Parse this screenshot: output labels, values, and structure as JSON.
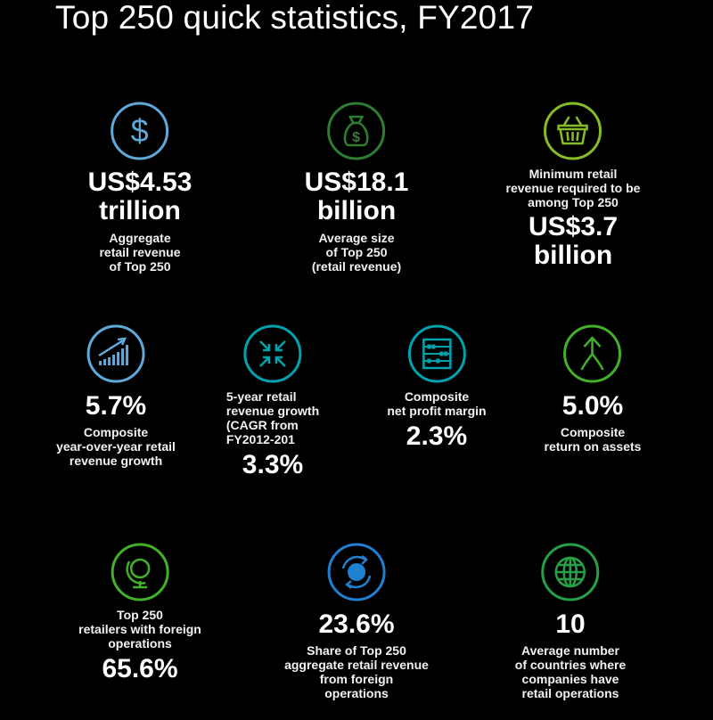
{
  "title": "Top 250 quick statistics, FY2017",
  "colors": {
    "blue": "#5fa8d8",
    "green": "#43b02a",
    "dark_green": "#2e7d32",
    "lime": "#86bc25",
    "teal": "#00a3ad",
    "bright_green": "#26a046"
  },
  "row1": {
    "s1": {
      "icon": "dollar-sign-icon",
      "value_line1": "US$4.53",
      "value_line2": "trillion",
      "desc": "Aggregate\nretail revenue\nof Top 250"
    },
    "s2": {
      "icon": "money-bag-icon",
      "value_line1": "US$18.1",
      "value_line2": "billion",
      "desc": "Average size\nof Top 250\n(retail revenue)"
    },
    "s3": {
      "icon": "shopping-basket-icon",
      "desc": "Minimum retail\nrevenue required to be\namong Top 250",
      "value_line1": "US$3.7",
      "value_line2": "billion"
    }
  },
  "row2": {
    "s1": {
      "icon": "growth-chart-icon",
      "value": "5.7%",
      "desc": "Composite\nyear-over-year retail\nrevenue growth"
    },
    "s2": {
      "icon": "compress-arrows-icon",
      "desc": "5-year retail\nrevenue growth\n(CAGR from\nFY2012-201",
      "value": "3.3%"
    },
    "s3": {
      "icon": "abacus-icon",
      "desc": "Composite\nnet profit margin",
      "value": "2.3%"
    },
    "s4": {
      "icon": "merge-arrow-icon",
      "value": "5.0%",
      "desc": "Composite\nreturn on assets"
    }
  },
  "row3": {
    "s1": {
      "icon": "globe-stand-icon",
      "desc": "Top 250\nretailers with foreign\noperations",
      "value": "65.6%"
    },
    "s2": {
      "icon": "globe-arrows-icon",
      "value": "23.6%",
      "desc": "Share of Top 250\naggregate retail revenue\nfrom foreign\noperations"
    },
    "s3": {
      "icon": "world-grid-icon",
      "value": "10",
      "desc": "Average number\nof countries where\ncompanies have\nretail operations"
    }
  }
}
